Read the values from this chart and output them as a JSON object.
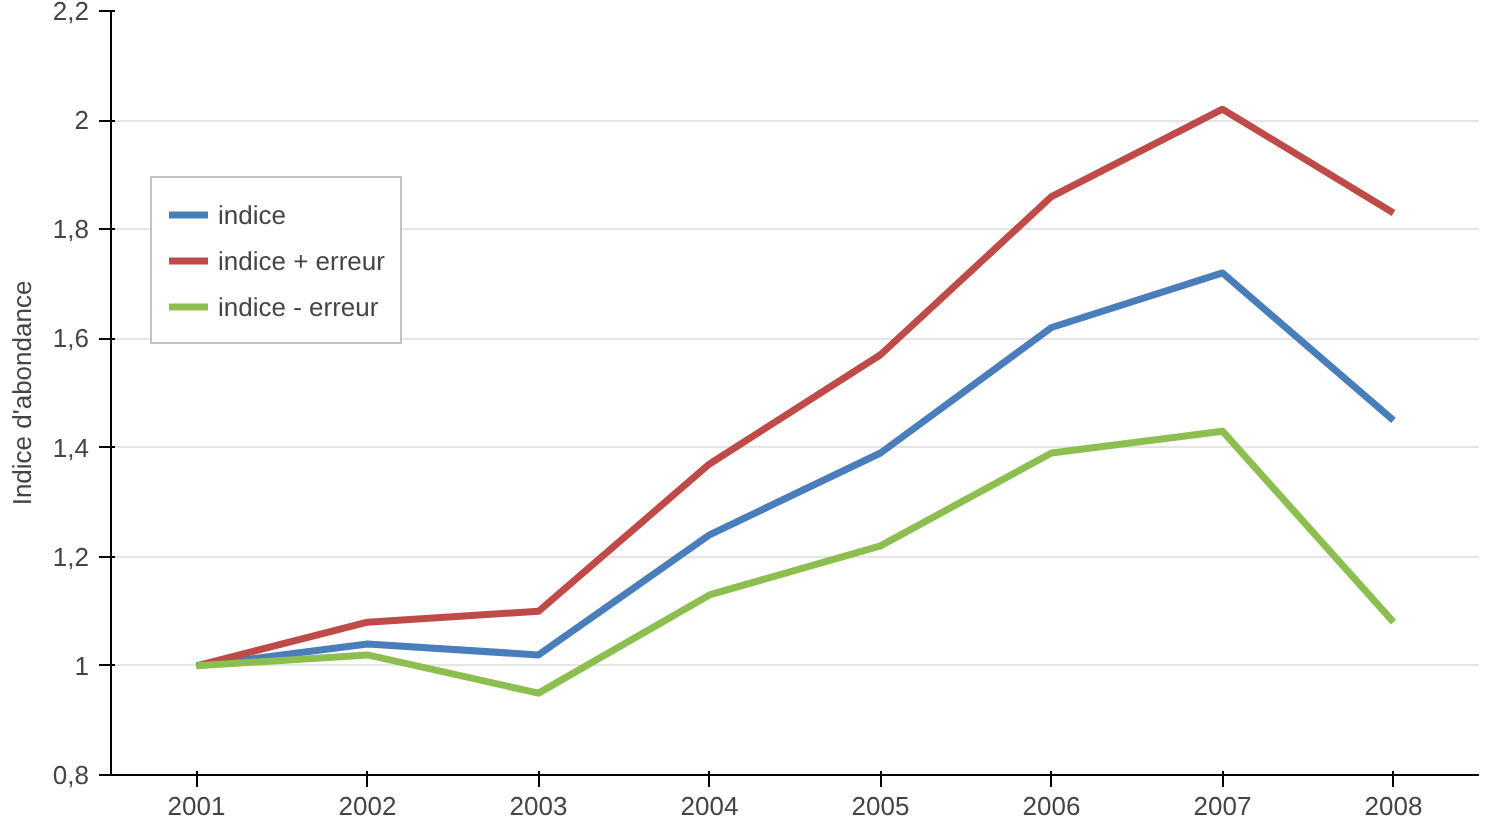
{
  "chart_data": {
    "type": "line",
    "ylabel": "Indice d'abondance",
    "categories": [
      "2001",
      "2002",
      "2003",
      "2004",
      "2005",
      "2006",
      "2007",
      "2008"
    ],
    "series": [
      {
        "name": "indice",
        "color": "#4a7ebb",
        "values": [
          1.0,
          1.04,
          1.02,
          1.24,
          1.39,
          1.62,
          1.72,
          1.45
        ]
      },
      {
        "name": "indice + erreur",
        "color": "#be4b48",
        "values": [
          1.0,
          1.08,
          1.1,
          1.37,
          1.57,
          1.86,
          2.02,
          1.83
        ]
      },
      {
        "name": "indice - erreur",
        "color": "#8cbf4f",
        "values": [
          1.0,
          1.02,
          0.95,
          1.13,
          1.22,
          1.39,
          1.43,
          1.08
        ]
      }
    ],
    "ylim": [
      0.8,
      2.2
    ],
    "yticks": [
      {
        "value": 0.8,
        "label": "0,8"
      },
      {
        "value": 1,
        "label": "1"
      },
      {
        "value": 1.2,
        "label": "1,2"
      },
      {
        "value": 1.4,
        "label": "1,4"
      },
      {
        "value": 1.6,
        "label": "1,6"
      },
      {
        "value": 1.8,
        "label": "1,8"
      },
      {
        "value": 2,
        "label": "2"
      },
      {
        "value": 2.2,
        "label": "2,2"
      }
    ],
    "grid": "y",
    "legend": "top left",
    "marker": "none",
    "line_style": "solid"
  }
}
